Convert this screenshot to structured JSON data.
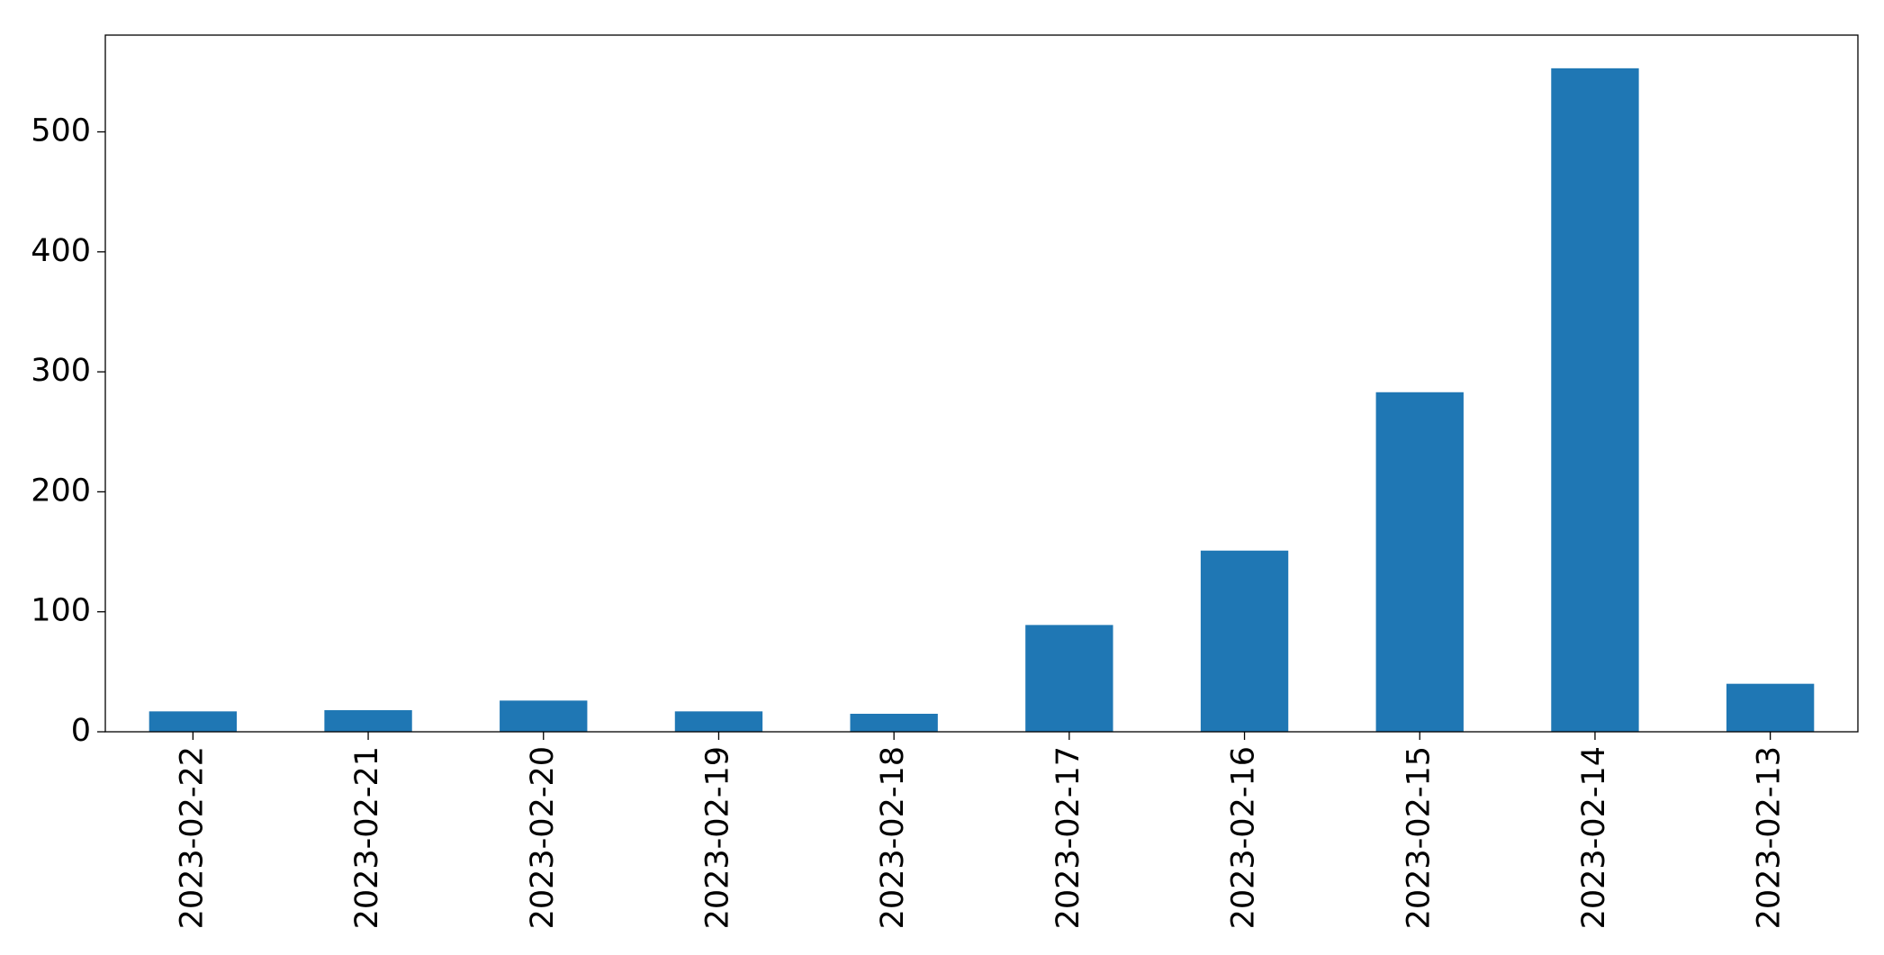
{
  "chart_data": {
    "type": "bar",
    "categories": [
      "2023-02-22",
      "2023-02-21",
      "2023-02-20",
      "2023-02-19",
      "2023-02-18",
      "2023-02-17",
      "2023-02-16",
      "2023-02-15",
      "2023-02-14",
      "2023-02-13"
    ],
    "values": [
      17,
      18,
      26,
      17,
      15,
      89,
      151,
      283,
      553,
      40
    ],
    "color": "#1f77b4",
    "ylim": [
      0,
      580.65
    ],
    "yticks": [
      0,
      100,
      200,
      300,
      400,
      500
    ],
    "grid": false
  }
}
